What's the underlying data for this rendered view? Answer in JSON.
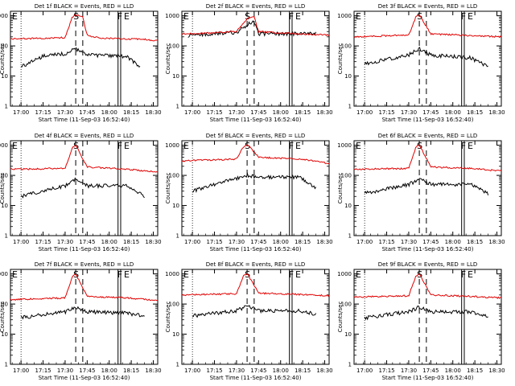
{
  "figure": {
    "xtick_labels": [
      "17:00",
      "17:15",
      "17:30",
      "17:45",
      "18:00",
      "18:15",
      "18:30"
    ],
    "ytick_labels": [
      "1",
      "10",
      "100",
      "1000"
    ],
    "xlabel": "Start Time (11-Sep-03 16:52:40)",
    "ylabel": "Counts/sec",
    "marker_labels": {
      "e_start": "E",
      "s": "S",
      "f": "F",
      "e_end": "E"
    },
    "colors": {
      "events": "#000000",
      "lld": "#e00000",
      "axes": "#000000"
    }
  },
  "chart_data": [
    {
      "type": "line",
      "title": "Det 1f BLACK = Events, RED = LLD",
      "xlabel": "Start Time (11-Sep-03 16:52:40)",
      "ylabel": "Counts/sec",
      "xlim": [
        16.88,
        18.55
      ],
      "ylim": [
        1,
        1000
      ],
      "yscale": "log",
      "x": [
        16.88,
        17.0,
        17.25,
        17.5,
        17.58,
        17.62,
        17.75,
        17.9,
        18.2,
        18.35,
        18.55
      ],
      "series": [
        {
          "name": "Events",
          "color": "#000000",
          "x": [
            17.0,
            17.25,
            17.5,
            17.58,
            17.62,
            17.75,
            18.2,
            18.35
          ],
          "values": [
            20,
            45,
            55,
            70,
            80,
            50,
            45,
            20
          ]
        },
        {
          "name": "LLD",
          "color": "#e00000",
          "x": [
            16.88,
            17.25,
            17.5,
            17.58,
            17.62,
            17.7,
            17.75,
            17.9,
            18.2,
            18.35,
            18.55
          ],
          "values": [
            170,
            180,
            190,
            900,
            1100,
            900,
            220,
            180,
            170,
            170,
            150
          ]
        }
      ],
      "vlines": {
        "dotted": [
          17.0,
          18.55
        ],
        "dashed": [
          17.62,
          17.7
        ],
        "solid": [
          18.1,
          18.13
        ]
      }
    },
    {
      "type": "line",
      "title": "Det 2f BLACK = Events, RED = LLD",
      "xlabel": "Start Time (11-Sep-03 16:52:40)",
      "ylabel": "Counts/sec",
      "xlim": [
        16.88,
        18.55
      ],
      "ylim": [
        1,
        1000
      ],
      "yscale": "log",
      "x": [
        16.88,
        17.25,
        17.5,
        17.62,
        17.7,
        17.75,
        18.2,
        18.4
      ],
      "series": [
        {
          "name": "Events",
          "color": "#000000",
          "x": [
            16.95,
            17.25,
            17.5,
            17.62,
            17.7,
            17.75,
            18.2,
            18.4
          ],
          "values": [
            220,
            260,
            280,
            500,
            700,
            250,
            250,
            260
          ]
        },
        {
          "name": "LLD",
          "color": "#e00000",
          "x": [
            16.88,
            17.25,
            17.5,
            17.62,
            17.7,
            17.75,
            18.2,
            18.55
          ],
          "values": [
            250,
            270,
            300,
            800,
            900,
            300,
            250,
            230
          ]
        }
      ],
      "vlines": {
        "dotted": [
          17.0,
          18.55
        ],
        "dashed": [
          17.62,
          17.7
        ],
        "solid": [
          18.1,
          18.13
        ]
      }
    },
    {
      "type": "line",
      "title": "Det 3f BLACK = Events, RED = LLD",
      "xlabel": "Start Time (11-Sep-03 16:52:40)",
      "ylabel": "Counts/sec",
      "xlim": [
        16.88,
        18.55
      ],
      "ylim": [
        1,
        1000
      ],
      "yscale": "log",
      "x": [
        16.88,
        17.0,
        17.5,
        17.58,
        17.62,
        17.75,
        18.2,
        18.4,
        18.55
      ],
      "series": [
        {
          "name": "Events",
          "color": "#000000",
          "x": [
            17.0,
            17.5,
            17.58,
            17.62,
            17.75,
            18.2,
            18.4
          ],
          "values": [
            25,
            50,
            70,
            80,
            50,
            40,
            20
          ]
        },
        {
          "name": "LLD",
          "color": "#e00000",
          "x": [
            16.88,
            17.5,
            17.58,
            17.62,
            17.75,
            18.2,
            18.55
          ],
          "values": [
            200,
            230,
            900,
            1100,
            250,
            220,
            200
          ]
        }
      ],
      "vlines": {
        "dotted": [
          17.0,
          18.55
        ],
        "dashed": [
          17.62,
          17.7
        ],
        "solid": [
          18.1,
          18.13
        ]
      }
    },
    {
      "type": "line",
      "title": "Det 4f BLACK = Events, RED = LLD",
      "xlabel": "Start Time (11-Sep-03 16:52:40)",
      "ylabel": "Counts/sec",
      "xlim": [
        16.88,
        18.55
      ],
      "ylim": [
        1,
        1000
      ],
      "yscale": "log",
      "x": [
        16.88,
        17.0,
        17.5,
        17.58,
        17.62,
        17.75,
        18.2,
        18.4,
        18.55
      ],
      "series": [
        {
          "name": "Events",
          "color": "#000000",
          "x": [
            17.0,
            17.5,
            17.58,
            17.62,
            17.75,
            18.2,
            18.4
          ],
          "values": [
            20,
            45,
            60,
            75,
            45,
            45,
            20
          ]
        },
        {
          "name": "LLD",
          "color": "#e00000",
          "x": [
            16.88,
            17.5,
            17.58,
            17.62,
            17.75,
            18.2,
            18.55
          ],
          "values": [
            160,
            170,
            800,
            1000,
            190,
            160,
            130
          ]
        }
      ],
      "vlines": {
        "dotted": [
          17.0,
          18.55
        ],
        "dashed": [
          17.62,
          17.7
        ],
        "solid": [
          18.1,
          18.13
        ]
      }
    },
    {
      "type": "line",
      "title": "Det 5f BLACK = Events, RED = LLD",
      "xlabel": "Start Time (11-Sep-03 16:52:40)",
      "ylabel": "Counts/sec",
      "xlim": [
        16.88,
        18.55
      ],
      "ylim": [
        1,
        1000
      ],
      "yscale": "log",
      "x": [
        16.88,
        17.0,
        17.5,
        17.58,
        17.62,
        17.75,
        18.2,
        18.4,
        18.55
      ],
      "series": [
        {
          "name": "Events",
          "color": "#000000",
          "x": [
            17.0,
            17.5,
            17.58,
            17.62,
            17.75,
            18.2,
            18.4
          ],
          "values": [
            30,
            80,
            90,
            100,
            85,
            90,
            40
          ]
        },
        {
          "name": "LLD",
          "color": "#e00000",
          "x": [
            16.88,
            17.5,
            17.58,
            17.62,
            17.75,
            18.2,
            18.55
          ],
          "values": [
            300,
            350,
            900,
            1100,
            400,
            350,
            250
          ]
        }
      ],
      "vlines": {
        "dotted": [
          17.0,
          18.55
        ],
        "dashed": [
          17.62,
          17.7
        ],
        "solid": [
          18.1,
          18.13
        ]
      }
    },
    {
      "type": "line",
      "title": "Det 6f BLACK = Events, RED = LLD",
      "xlabel": "Start Time (11-Sep-03 16:52:40)",
      "ylabel": "Counts/sec",
      "xlim": [
        16.88,
        18.55
      ],
      "ylim": [
        1,
        1000
      ],
      "yscale": "log",
      "x": [
        16.88,
        17.0,
        17.5,
        17.58,
        17.62,
        17.75,
        18.2,
        18.4,
        18.55
      ],
      "series": [
        {
          "name": "Events",
          "color": "#000000",
          "x": [
            17.0,
            17.5,
            17.58,
            17.62,
            17.75,
            18.2,
            18.4
          ],
          "values": [
            25,
            50,
            65,
            80,
            50,
            50,
            25
          ]
        },
        {
          "name": "LLD",
          "color": "#e00000",
          "x": [
            16.88,
            17.5,
            17.58,
            17.62,
            17.75,
            18.2,
            18.55
          ],
          "values": [
            160,
            170,
            850,
            1050,
            190,
            170,
            140
          ]
        }
      ],
      "vlines": {
        "dotted": [
          17.0,
          18.55
        ],
        "dashed": [
          17.62,
          17.7
        ],
        "solid": [
          18.1,
          18.13
        ]
      }
    },
    {
      "type": "line",
      "title": "Det 7f BLACK = Events, RED = LLD",
      "xlabel": "Start Time (11-Sep-03 16:52:40)",
      "ylabel": "Counts/sec",
      "xlim": [
        16.88,
        18.55
      ],
      "ylim": [
        1,
        1000
      ],
      "yscale": "log",
      "x": [
        16.88,
        17.0,
        17.5,
        17.58,
        17.62,
        17.75,
        18.2,
        18.4,
        18.55
      ],
      "series": [
        {
          "name": "Events",
          "color": "#000000",
          "x": [
            17.0,
            17.5,
            17.58,
            17.62,
            17.75,
            18.2,
            18.4
          ],
          "values": [
            35,
            55,
            70,
            80,
            55,
            50,
            40
          ]
        },
        {
          "name": "LLD",
          "color": "#e00000",
          "x": [
            16.88,
            17.5,
            17.58,
            17.62,
            17.75,
            18.2,
            18.55
          ],
          "values": [
            140,
            160,
            800,
            1000,
            180,
            160,
            130
          ]
        }
      ],
      "vlines": {
        "dotted": [
          17.0,
          18.55
        ],
        "dashed": [
          17.62,
          17.7
        ],
        "solid": [
          18.1,
          18.13
        ]
      }
    },
    {
      "type": "line",
      "title": "Det 8f BLACK = Events, RED = LLD",
      "xlabel": "Start Time (11-Sep-03 16:52:40)",
      "ylabel": "Counts/sec",
      "xlim": [
        16.88,
        18.55
      ],
      "ylim": [
        1,
        1000
      ],
      "yscale": "log",
      "x": [
        16.88,
        17.0,
        17.5,
        17.58,
        17.62,
        17.75,
        18.2,
        18.4,
        18.55
      ],
      "series": [
        {
          "name": "Events",
          "color": "#000000",
          "x": [
            17.0,
            17.5,
            17.58,
            17.62,
            17.75,
            18.2,
            18.4
          ],
          "values": [
            40,
            60,
            75,
            85,
            60,
            60,
            45
          ]
        },
        {
          "name": "LLD",
          "color": "#e00000",
          "x": [
            16.88,
            17.5,
            17.58,
            17.62,
            17.75,
            18.2,
            18.55
          ],
          "values": [
            200,
            220,
            850,
            1050,
            230,
            210,
            190
          ]
        }
      ],
      "vlines": {
        "dotted": [
          17.0,
          18.55
        ],
        "dashed": [
          17.62,
          17.7
        ],
        "solid": [
          18.1,
          18.13
        ]
      }
    },
    {
      "type": "line",
      "title": "Det 9f BLACK = Events, RED = LLD",
      "xlabel": "Start Time (11-Sep-03 16:52:40)",
      "ylabel": "Counts/sec",
      "xlim": [
        16.88,
        18.55
      ],
      "ylim": [
        1,
        1000
      ],
      "yscale": "log",
      "x": [
        16.88,
        17.0,
        17.5,
        17.58,
        17.62,
        17.75,
        18.2,
        18.4,
        18.55
      ],
      "series": [
        {
          "name": "Events",
          "color": "#000000",
          "x": [
            17.0,
            17.5,
            17.58,
            17.62,
            17.75,
            18.2,
            18.4
          ],
          "values": [
            35,
            55,
            70,
            80,
            55,
            55,
            40
          ]
        },
        {
          "name": "LLD",
          "color": "#e00000",
          "x": [
            16.88,
            17.5,
            17.58,
            17.62,
            17.75,
            18.2,
            18.55
          ],
          "values": [
            170,
            190,
            850,
            1050,
            200,
            180,
            160
          ]
        }
      ],
      "vlines": {
        "dotted": [
          17.0,
          18.55
        ],
        "dashed": [
          17.62,
          17.7
        ],
        "solid": [
          18.1,
          18.13
        ]
      }
    }
  ]
}
